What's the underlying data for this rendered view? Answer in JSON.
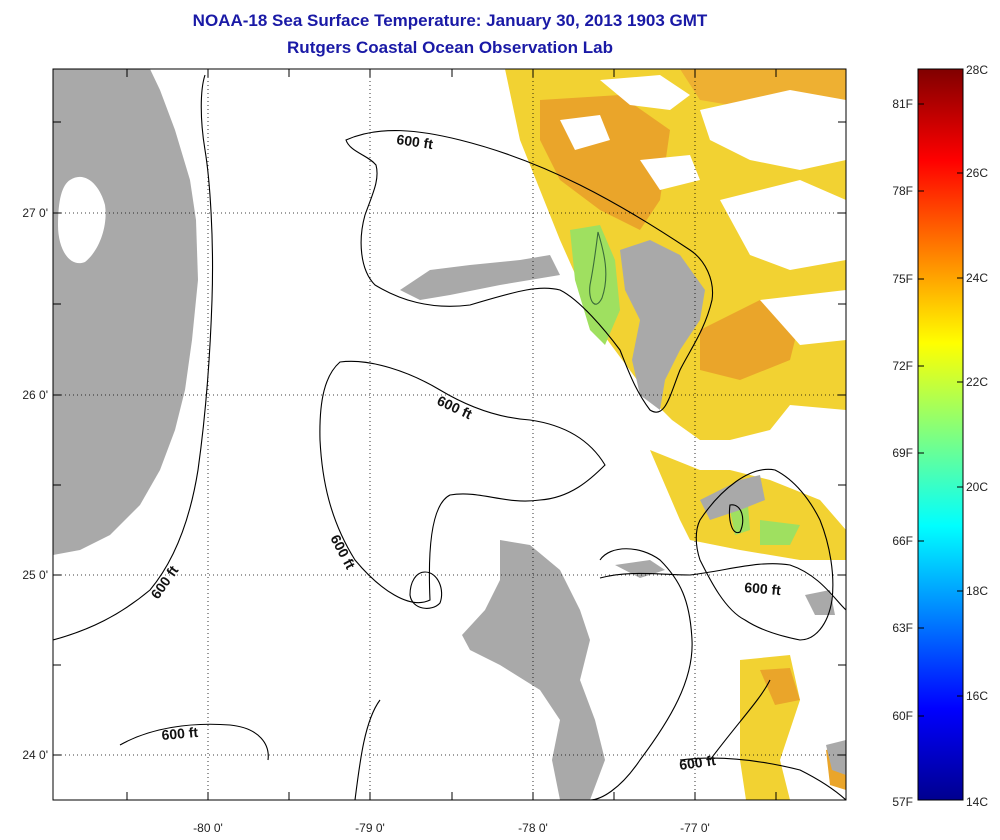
{
  "title": {
    "line1": "NOAA-18 Sea Surface Temperature:  January 30, 2013 1903 GMT",
    "line2": "Rutgers Coastal Ocean Observation Lab"
  },
  "map": {
    "longitude_ticks": [
      "-80 0'",
      "-79 0'",
      "-78 0'",
      "-77 0'"
    ],
    "latitude_ticks": [
      "27 0'",
      "26 0'",
      "25 0'",
      "24 0'"
    ],
    "contour_labels": [
      "600 ft",
      "600 ft",
      "600 ft",
      "600 ft",
      "600 ft",
      "600 ft"
    ],
    "colors": {
      "land": "#a9a9a9",
      "cloud_or_no_data": "#ffffff",
      "contour": "#000000",
      "grid": "#000000"
    }
  },
  "colorbar": {
    "fahrenheit_labels": [
      "81F",
      "78F",
      "75F",
      "72F",
      "69F",
      "66F",
      "63F",
      "60F",
      "57F"
    ],
    "celsius_labels": [
      "28C",
      "26C",
      "24C",
      "22C",
      "20C",
      "18C",
      "16C",
      "14C"
    ],
    "colormap": [
      "#00008f",
      "#0000ff",
      "#00ffff",
      "#ffff00",
      "#ff0000",
      "#800000"
    ]
  }
}
